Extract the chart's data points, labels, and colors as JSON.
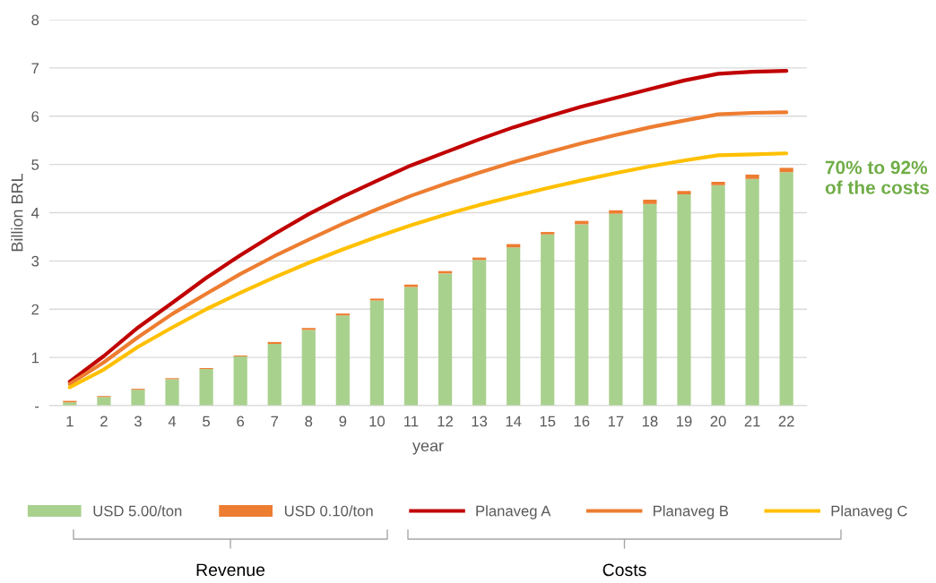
{
  "chart_data": {
    "type": "bar",
    "stacked": true,
    "xlabel": "year",
    "ylabel": "Billion BRL",
    "categories": [
      "1",
      "2",
      "3",
      "4",
      "5",
      "6",
      "7",
      "8",
      "9",
      "10",
      "11",
      "12",
      "13",
      "14",
      "15",
      "16",
      "17",
      "18",
      "19",
      "20",
      "21",
      "22"
    ],
    "series": [
      {
        "name": "USD 5.00/ton",
        "color": "#a9d18e",
        "values": [
          0.07,
          0.18,
          0.33,
          0.55,
          0.76,
          1.02,
          1.28,
          1.57,
          1.87,
          2.18,
          2.46,
          2.74,
          3.02,
          3.28,
          3.55,
          3.76,
          3.98,
          4.18,
          4.38,
          4.57,
          4.7,
          4.84
        ]
      },
      {
        "name": "USD 0.10/ton",
        "color": "#ed7d31",
        "values": [
          0.03,
          0.02,
          0.02,
          0.02,
          0.02,
          0.02,
          0.04,
          0.04,
          0.04,
          0.04,
          0.05,
          0.05,
          0.05,
          0.07,
          0.05,
          0.07,
          0.07,
          0.09,
          0.07,
          0.07,
          0.09,
          0.09
        ]
      },
      {
        "name": "Planaveg A",
        "type": "line",
        "color": "#c00000",
        "values": [
          0.5,
          1.03,
          1.62,
          2.13,
          2.65,
          3.12,
          3.56,
          3.97,
          4.33,
          4.66,
          4.98,
          5.25,
          5.52,
          5.77,
          5.99,
          6.2,
          6.38,
          6.56,
          6.74,
          6.88,
          6.92,
          6.94
        ]
      },
      {
        "name": "Planaveg B",
        "type": "line",
        "color": "#ed7d31",
        "values": [
          0.45,
          0.9,
          1.42,
          1.9,
          2.32,
          2.73,
          3.1,
          3.44,
          3.77,
          4.07,
          4.35,
          4.6,
          4.83,
          5.05,
          5.25,
          5.44,
          5.61,
          5.77,
          5.91,
          6.04,
          6.07,
          6.08
        ]
      },
      {
        "name": "Planaveg C",
        "type": "line",
        "color": "#ffc000",
        "values": [
          0.38,
          0.75,
          1.22,
          1.62,
          2.0,
          2.34,
          2.66,
          2.96,
          3.24,
          3.5,
          3.74,
          3.96,
          4.16,
          4.34,
          4.51,
          4.67,
          4.82,
          4.96,
          5.08,
          5.19,
          5.21,
          5.23
        ]
      }
    ],
    "ylim": [
      0,
      8
    ],
    "yticks": [
      {
        "value": 0,
        "label": "-"
      },
      1,
      2,
      3,
      4,
      5,
      6,
      7,
      8
    ],
    "grid": "y",
    "legend": "bottom",
    "marker": "none",
    "line_style": "solid",
    "annotations": [
      "70% to 92%\nof the costs",
      "Revenue",
      "Costs"
    ]
  }
}
